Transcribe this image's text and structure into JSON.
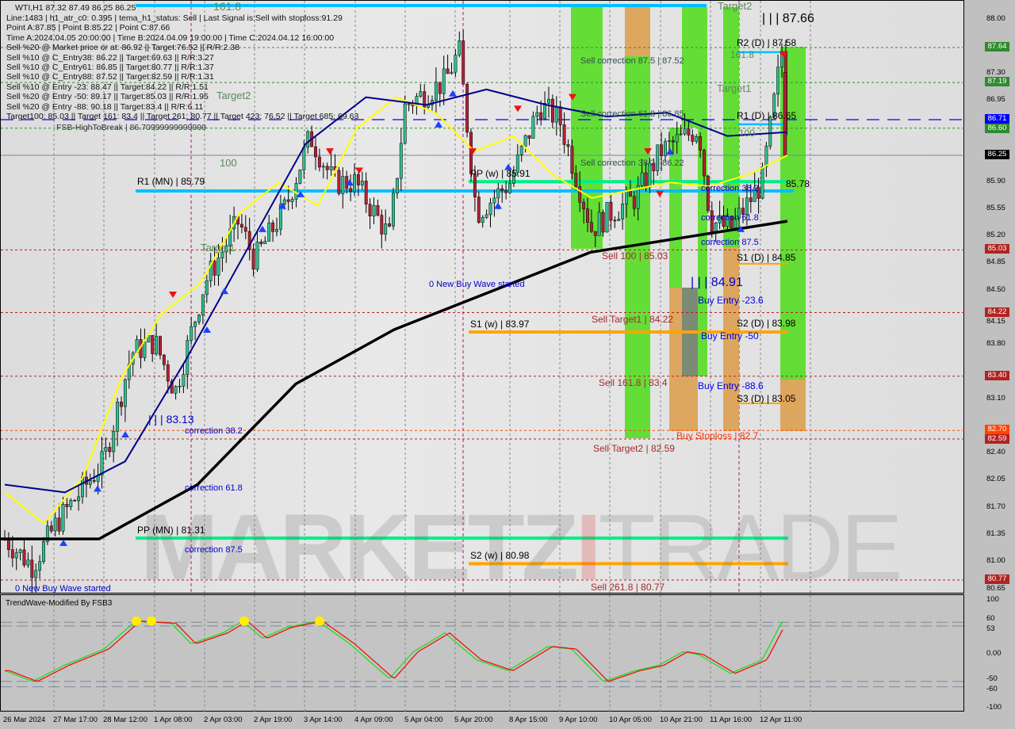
{
  "header": {
    "symbol_line": "WTI,H1  87.32 87.49 86.25 86.25"
  },
  "info_lines": [
    "Line:1483 | h1_atr_c0: 0.395 | tema_h1_status: Sell | Last Signal is:Sell with stoploss:91.29",
    "Point A:87.85 | Point B:85.22 | Point C:87.66",
    "Time A:2024.04.05 20:00:00 | Time B:2024.04.09 19:00:00 | Time C:2024.04.12 16:00:00",
    "Sell %20 @ Market price or at: 86.92 || Target:76.52 || R/R:2.38",
    "Sell %10 @ C_Entry38: 86.22 || Target:69.63 || R/R:3.27",
    "Sell %10 @ C_Entry61: 86.85 || Target:80.77 || R/R:1.37",
    "Sell %10 @ C_Entry88: 87.52 || Target:82.59 || R/R:1.31",
    "Sell %10 @ Entry -23: 88.47 || Target:84.22 || R/R:1.51",
    "Sell %20 @ Entry -50: 89.17 || Target:85.03 || R/R:1.95",
    "Sell %20 @ Entry -88: 90.18 || Target:83.4 || R/R:6.11",
    "Target100: 85.03 || Target 161: 83.4 || Target 261: 80.77 || Target 423: 76.52 || Target 685: 69.63"
  ],
  "overlay_text": "FSB-HighToBreak | 86.70999999999999",
  "watermark": {
    "part1": "MARKETZ",
    "part2": "I",
    "part3": "TRADE"
  },
  "annotations": {
    "fib_161": "161.8",
    "target2_a": "Target2",
    "target2_b": "Target2",
    "fib_100": "100",
    "target1_a": "Target1",
    "target1_b": "Target1",
    "r1_mn": "R1 (MN) | 85.79",
    "pp_mn": "PP (MN) | 81.31",
    "pp_w": "PP (w) | 85.91",
    "s1_w": "S1 (w) | 83.97",
    "s2_w": "S2 (w) | 80.98",
    "r2_d": "R2 (D) | 87.58",
    "r1_d": "R1 (D) | 86.65",
    "pp_d": "85.78",
    "s1_d": "S1 (D) | 84.85",
    "s2_d": "S2 (D) | 83.98",
    "s3_d": "S3 (D) | 83.05",
    "point_c": "| | | 87.66",
    "point_b": "| | | 84.91",
    "point_a": "| | | 83.13",
    "fib_161_d": "161.8",
    "fib_100_d": "100",
    "sell_corr_875": "Sell correction 87.5 | 87.52",
    "sell_corr_618": "Sell correction 61.8 | 86.85",
    "sell_corr_382": "Sell correction 38.2 | 86.22",
    "sell_100": "Sell 100 | 85.03",
    "sell_t1": "Sell Target1 | 84.22",
    "sell_161": "Sell 161.8 | 83.4",
    "sell_t2": "Sell Target2 | 82.59",
    "sell_261": "Sell 261.8 | 80.77",
    "buy_stoploss": "Buy Stoploss | 82.7",
    "buy_236": "Buy Entry -23.6",
    "buy_50": "Buy Entry -50",
    "buy_886": "Buy Entry -88.6",
    "corr_382_r": "correction 38.2",
    "corr_618_r": "correction 61.8",
    "corr_875_r": "correction 87.5",
    "corr_382": "correction 38.2",
    "corr_618": "correction 61.8",
    "corr_875": "correction 87.5",
    "new_wave": "0 New Buy Wave started",
    "buy_wave": "0 New Buy Wave started"
  },
  "price_tags": [
    {
      "v": "87.64",
      "c": "#2e8b2e"
    },
    {
      "v": "87.19",
      "c": "#2e8b2e"
    },
    {
      "v": "86.71",
      "c": "#0000ff"
    },
    {
      "v": "86.60",
      "c": "#2e8b2e"
    },
    {
      "v": "86.25",
      "c": "#000000"
    },
    {
      "v": "85.03",
      "c": "#b22222"
    },
    {
      "v": "84.22",
      "c": "#b22222"
    },
    {
      "v": "83.40",
      "c": "#b22222"
    },
    {
      "v": "82.70",
      "c": "#ff4500"
    },
    {
      "v": "82.59",
      "c": "#b22222"
    },
    {
      "v": "80.77",
      "c": "#b22222"
    }
  ],
  "y_ticks": [
    "88.00",
    "87.30",
    "86.95",
    "85.90",
    "85.55",
    "85.20",
    "84.85",
    "84.50",
    "84.15",
    "83.80",
    "83.10",
    "82.40",
    "82.05",
    "81.70",
    "81.35",
    "81.00",
    "80.65"
  ],
  "x_ticks": [
    "26 Mar 2024",
    "27 Mar 17:00",
    "28 Mar 12:00",
    "1 Apr 08:00",
    "2 Apr 03:00",
    "2 Apr 19:00",
    "3 Apr 14:00",
    "4 Apr 09:00",
    "5 Apr 04:00",
    "5 Apr 20:00",
    "8 Apr 15:00",
    "9 Apr 10:00",
    "10 Apr 05:00",
    "10 Apr 21:00",
    "11 Apr 16:00",
    "12 Apr 11:00"
  ],
  "indicator": {
    "title": "TrendWave-Modified By FSB3",
    "ticks": [
      "100",
      "60",
      "53",
      "0.00",
      "-50",
      "-60",
      "-100"
    ]
  },
  "colors": {
    "bull": "#2fbf8f",
    "bear": "#b22234",
    "ma_slow": "#000000",
    "ma_mid": "#00008b",
    "ma_fast": "#ffff00",
    "level_cyan": "#00bfff",
    "level_green": "#00ee88",
    "level_orange": "#ffa500",
    "zone_green": "#55dd22",
    "zone_orange": "#dda050",
    "zone_grey": "#708878"
  },
  "chart_data": {
    "type": "candlestick",
    "symbol": "WTI",
    "timeframe": "H1",
    "ylim": [
      80.65,
      88.0
    ],
    "last": {
      "open": 87.32,
      "high": 87.49,
      "low": 86.25,
      "close": 86.25
    },
    "price_path": [
      {
        "t": "26 Mar 00:00",
        "p": 81.3
      },
      {
        "t": "26 Mar 20:00",
        "p": 80.95
      },
      {
        "t": "27 Mar 17:00",
        "p": 81.5
      },
      {
        "t": "28 Mar 12:00",
        "p": 82.3
      },
      {
        "t": "28 Mar 19:00",
        "p": 83.7
      },
      {
        "t": "1 Apr 08:00",
        "p": 83.85
      },
      {
        "t": "1 Apr 13:00",
        "p": 83.2
      },
      {
        "t": "2 Apr 03:00",
        "p": 84.6
      },
      {
        "t": "2 Apr 12:00",
        "p": 85.4
      },
      {
        "t": "2 Apr 19:00",
        "p": 84.9
      },
      {
        "t": "3 Apr 06:00",
        "p": 85.6
      },
      {
        "t": "3 Apr 15:00",
        "p": 86.5
      },
      {
        "t": "4 Apr 01:00",
        "p": 85.9
      },
      {
        "t": "4 Apr 09:00",
        "p": 85.9
      },
      {
        "t": "4 Apr 20:00",
        "p": 85.2
      },
      {
        "t": "5 Apr 04:00",
        "p": 86.9
      },
      {
        "t": "5 Apr 15:00",
        "p": 87.2
      },
      {
        "t": "5 Apr 20:00",
        "p": 87.6
      },
      {
        "t": "8 Apr 01:00",
        "p": 85.5
      },
      {
        "t": "8 Apr 15:00",
        "p": 85.9
      },
      {
        "t": "9 Apr 01:00",
        "p": 86.9
      },
      {
        "t": "9 Apr 10:00",
        "p": 86.7
      },
      {
        "t": "9 Apr 22:00",
        "p": 85.3
      },
      {
        "t": "10 Apr 05:00",
        "p": 85.5
      },
      {
        "t": "10 Apr 13:00",
        "p": 85.7
      },
      {
        "t": "10 Apr 21:00",
        "p": 86.3
      },
      {
        "t": "11 Apr 11:00",
        "p": 86.6
      },
      {
        "t": "11 Apr 16:00",
        "p": 85.4
      },
      {
        "t": "11 Apr 22:00",
        "p": 85.3
      },
      {
        "t": "12 Apr 06:00",
        "p": 85.9
      },
      {
        "t": "12 Apr 13:00",
        "p": 87.6
      },
      {
        "t": "12 Apr 16:00",
        "p": 86.25
      }
    ],
    "ma_slow": [
      81.3,
      81.3,
      82.0,
      83.3,
      84.0,
      84.5,
      85.0,
      85.2,
      85.4
    ],
    "ma_mid": [
      82.0,
      81.9,
      82.3,
      83.6,
      85.0,
      86.4,
      87.0,
      86.9,
      87.1,
      86.9,
      86.75,
      86.8,
      86.5,
      86.55
    ],
    "ma_fast": [
      81.9,
      81.5,
      82.1,
      83.4,
      84.2,
      84.6,
      85.5,
      85.9,
      85.6,
      86.6,
      87.0,
      86.8,
      86.3,
      86.5,
      86.0,
      85.7,
      85.8,
      85.9,
      85.85,
      86.0,
      86.25
    ],
    "levels": [
      {
        "name": "R1 (MN)",
        "v": 85.79
      },
      {
        "name": "PP (MN)",
        "v": 81.31
      },
      {
        "name": "PP (w)",
        "v": 85.91
      },
      {
        "name": "S1 (w)",
        "v": 83.97
      },
      {
        "name": "S2 (w)",
        "v": 80.98
      },
      {
        "name": "R2 (D)",
        "v": 87.58
      },
      {
        "name": "R1 (D)",
        "v": 86.65
      },
      {
        "name": "PP (D)",
        "v": 85.78
      },
      {
        "name": "S1 (D)",
        "v": 84.85
      },
      {
        "name": "S2 (D)",
        "v": 83.98
      },
      {
        "name": "S3 (D)",
        "v": 83.05
      }
    ],
    "oscillator": {
      "ylim": [
        -100,
        100
      ],
      "levels": [
        60,
        53,
        -50,
        -60
      ],
      "values": [
        -30,
        -50,
        -20,
        10,
        62,
        58,
        20,
        40,
        62,
        30,
        50,
        62,
        20,
        -45,
        5,
        40,
        -10,
        -30,
        15,
        10,
        -50,
        -30,
        -20,
        5,
        0,
        -35,
        -10,
        60
      ]
    }
  }
}
